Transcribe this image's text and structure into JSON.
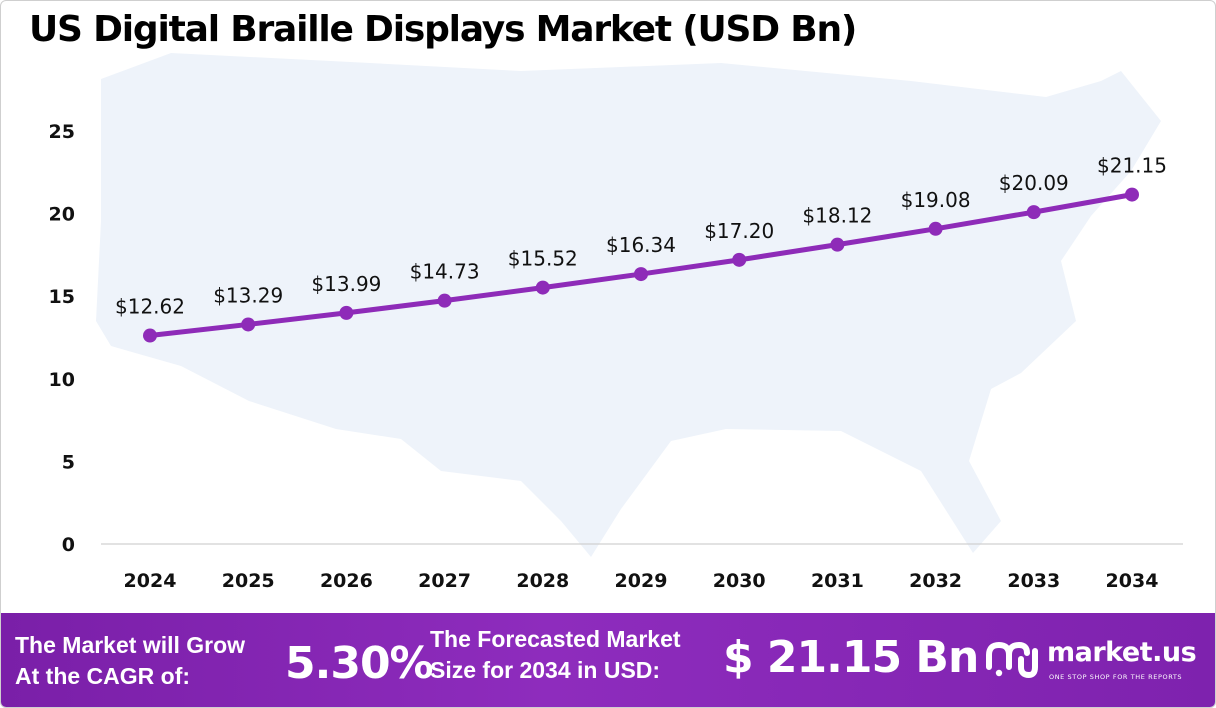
{
  "title": "US Digital Braille Displays Market (USD Bn)",
  "colors": {
    "line": "#8e2bb8",
    "map": "#eef3fa",
    "footer": "#8a2ab9"
  },
  "chart_data": {
    "type": "line",
    "title": "US Digital Braille Displays Market (USD Bn)",
    "xlabel": "",
    "ylabel": "",
    "ylim": [
      0,
      25
    ],
    "yticks": [
      "0",
      "5",
      "10",
      "15",
      "20",
      "25"
    ],
    "categories": [
      "2024",
      "2025",
      "2026",
      "2027",
      "2028",
      "2029",
      "2030",
      "2031",
      "2032",
      "2033",
      "2034"
    ],
    "values": [
      12.62,
      13.29,
      13.99,
      14.73,
      15.52,
      16.34,
      17.2,
      18.12,
      19.08,
      20.09,
      21.15
    ],
    "data_labels": [
      "$12.62",
      "$13.29",
      "$13.99",
      "$14.73",
      "$15.52",
      "$16.34",
      "$17.20",
      "$18.12",
      "$19.08",
      "$20.09",
      "$21.15"
    ],
    "grid": false,
    "legend": "none"
  },
  "footer": {
    "cagr_line1": "The Market will Grow",
    "cagr_line2": "At the CAGR of:",
    "cagr_value": "5.30%",
    "forecast_line1": "The Forecasted Market",
    "forecast_line2": "Size for 2034 in USD:",
    "forecast_value": "$ 21.15 Bn"
  },
  "brand": {
    "name": "market.us",
    "tagline": "ONE STOP SHOP FOR THE REPORTS",
    "icon": "market-us-logo-icon"
  }
}
